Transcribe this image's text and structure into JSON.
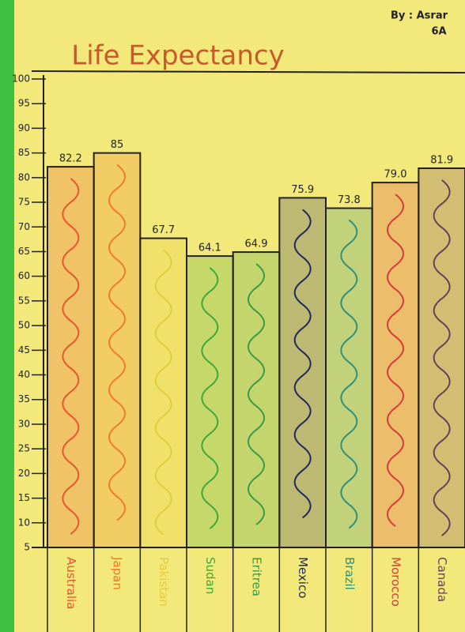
{
  "chart_data": {
    "type": "bar",
    "title": "Life Expectancy",
    "author": "By : Asrar",
    "class_name": "6A",
    "categories": [
      "Australia",
      "Japan",
      "Pakistan",
      "Sudan",
      "Eritrea",
      "Mexico",
      "Brazil",
      "Morocco",
      "Canada"
    ],
    "values": [
      82.2,
      85,
      67.7,
      64.1,
      64.9,
      75.9,
      73.8,
      79.0,
      81.9
    ],
    "value_labels": [
      "82.2",
      "85",
      "67.7",
      "64.1",
      "64.9",
      "75.9",
      "73.8",
      "79.0",
      "81.9"
    ],
    "colors": [
      "#e8552e",
      "#f07a2a",
      "#e2cc3a",
      "#3fa83a",
      "#3c9a46",
      "#1f2a5a",
      "#2f8f7a",
      "#d93a3a",
      "#6b3f5a"
    ],
    "ylim": [
      5,
      100
    ],
    "yticks": [
      5,
      10,
      15,
      20,
      25,
      30,
      35,
      40,
      45,
      50,
      55,
      60,
      65,
      70,
      75,
      80,
      85,
      90,
      95,
      100
    ]
  }
}
